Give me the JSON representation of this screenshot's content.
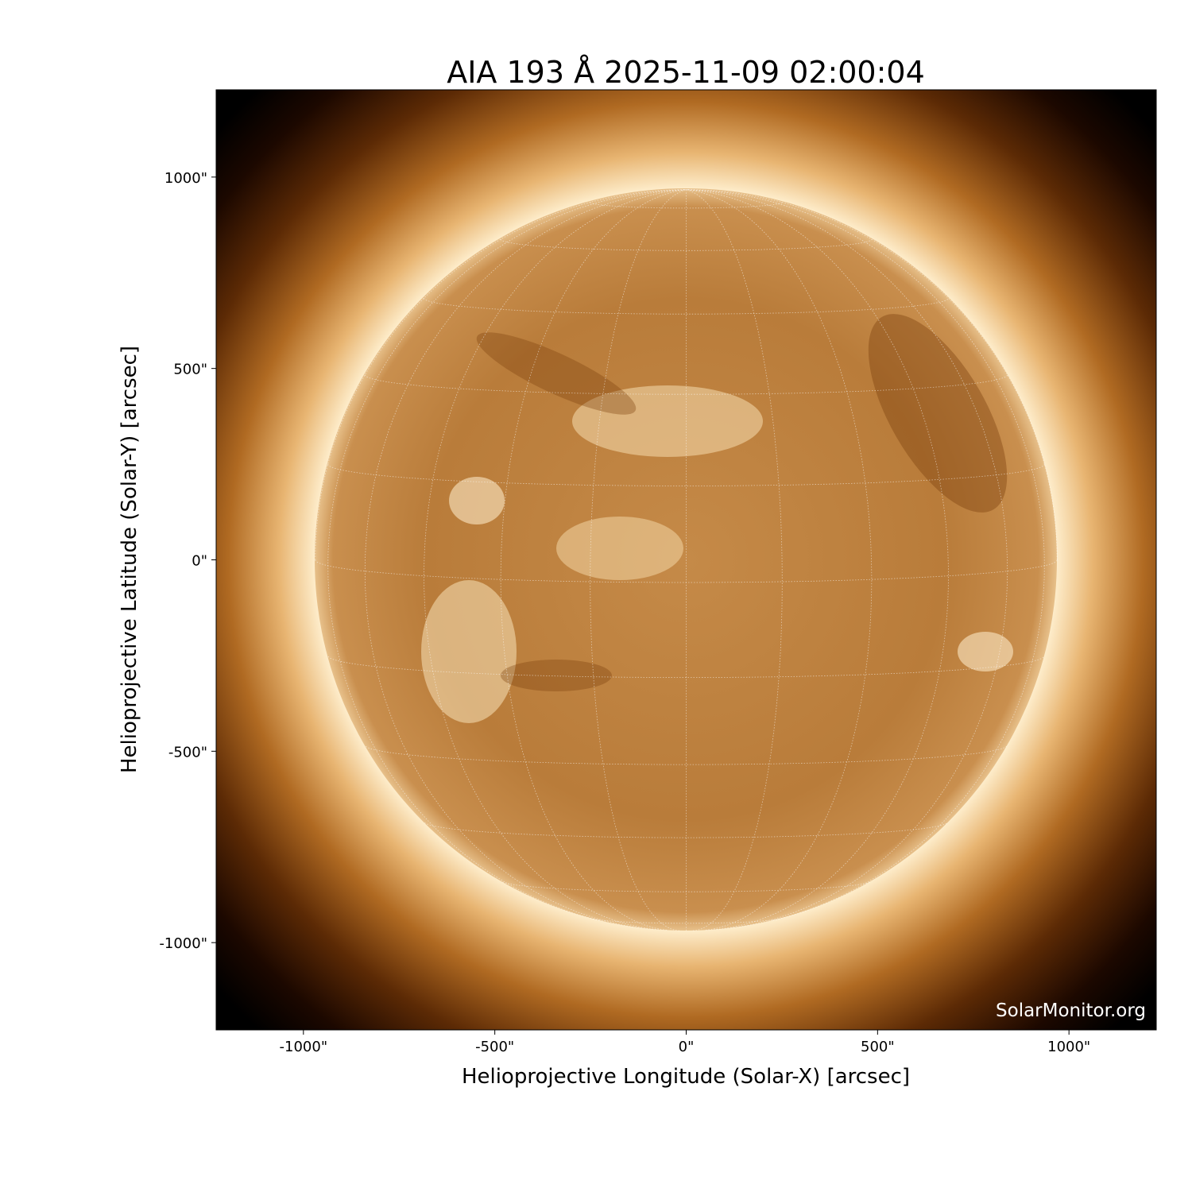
{
  "chart_data": {
    "type": "image",
    "title": "AIA 193 Å 2025-11-09 02:00:04",
    "xlabel": "Helioprojective Longitude (Solar-X) [arcsec]",
    "ylabel": "Helioprojective Latitude (Solar-Y) [arcsec]",
    "xlim": [
      -1228,
      1228
    ],
    "ylim": [
      -1228,
      1228
    ],
    "xticks": [
      -1000,
      -500,
      0,
      500,
      1000
    ],
    "yticks": [
      -1000,
      -500,
      0,
      500,
      1000
    ],
    "xtick_labels": [
      "-1000\"",
      "-500\"",
      "0\"",
      "500\"",
      "1000\""
    ],
    "ytick_labels": [
      "-1000\"",
      "-500\"",
      "0\"",
      "500\"",
      "1000\""
    ],
    "solar_radius_arcsec": 969,
    "grid_spacing_deg": 15,
    "colormap": [
      "#000000",
      "#5a2c06",
      "#a8641e",
      "#d9a35c",
      "#fff3d8"
    ],
    "watermark": "SolarMonitor.org"
  }
}
